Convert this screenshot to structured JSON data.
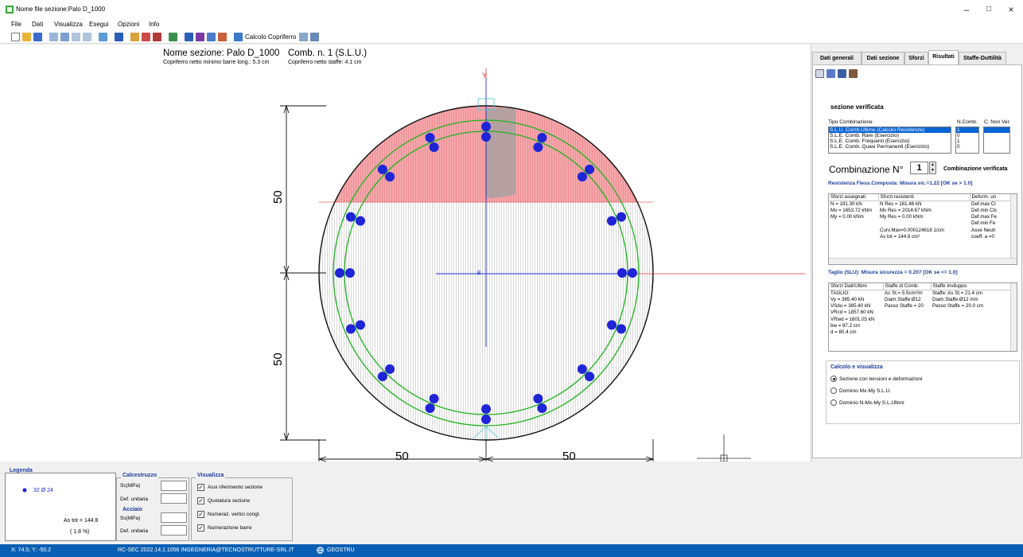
{
  "window": {
    "title": "Nome file sezione:Palo D_1000",
    "minimize": "–",
    "maximize": "□",
    "close": "×"
  },
  "menu": [
    "File",
    "Dati",
    "Visualizza",
    "Esegui",
    "Opzioni",
    "Info"
  ],
  "toolbar": {
    "calcolo_copriferro": "Calcolo Copriferro"
  },
  "drawing": {
    "section_name": "Nome sezione: Palo D_1000",
    "combination": "Comb. n. 1 (S.L.U.)",
    "cover_long": "Copriferro netto minimo barre long.: 5.3 cm",
    "cover_stirrups": "Copriferro netto staffe: 4.1 cm",
    "axis_y": "Y",
    "center_label": "B",
    "dim_top": "50",
    "dim_bottom": "50",
    "dim_left": "50",
    "dim_right": "50",
    "colors": {
      "compressed": "#f4a7ab",
      "rebar": "#1f24d6",
      "stirrup": "#21b321",
      "axis_y": "#1f2bd6",
      "axis_x": "#e03030",
      "neutral": "#999999"
    }
  },
  "tabs": [
    "Dati generali",
    "Dati sezione",
    "Sforzi",
    "Risultati",
    "Staffe-Duttilità"
  ],
  "panel": {
    "status_title": "sezione verificata",
    "tipo_combinazione_label": "Tipo Combinazione",
    "ncomb_label": "N.Comb.",
    "nonver_label": "C. Non Ver.",
    "combinations": [
      "S.L.U. Comb.Ultime (Calcolo Resistenze)",
      "S.L.E. Comb. Rare (Esercizio)",
      "S.L.E. Comb. Frequenti (Esercizio)",
      "S.L.E. Comb. Quasi Permanenti (Esercizio)"
    ],
    "ncomb_values": [
      "1",
      "0",
      "1",
      "0"
    ],
    "combinazione_label": "Combinazione N°",
    "combinazione_value": "1",
    "combinazione_status": "Combinazione verificata",
    "resistenza_title": "Resistenza Fless.Composta: Misura sic.=1.22 [OK se > 1.0]",
    "res_headers": [
      "Sforzi assegnati",
      "Sforzi resistenti",
      "Deform. un"
    ],
    "res_rows": [
      [
        "N = 181.30 kN",
        "N Res = 181.46 kN",
        "Def.max Cl"
      ],
      [
        "Mx = 1653.72 kNm",
        "Mx Res = 2014.67 kNm",
        "Def.min Cls"
      ],
      [
        "My = 0.00 kNm",
        "My Res = 0.00 kNm",
        "Def.max Fe"
      ],
      [
        "",
        "",
        "Def.min Fe"
      ],
      [
        "",
        "Curv.Max=0.000124618 1/cm",
        "Asse Neutr"
      ],
      [
        "",
        "As tot = 144.8 cm²",
        "coeff. a =0"
      ]
    ],
    "taglio_title": "Taglio (SLU): Misura sicurezza = 0.207 [OK se <= 1.0]",
    "tag_headers": [
      "Sforzi Dati/Ultimi",
      "Staffe di Comb.",
      "Staffe Inviluppo"
    ],
    "tag_rows": [
      [
        "TAGLIO:",
        "As St.= 5.5cm²/m",
        "Staffe: As St.= 21.4 cm"
      ],
      [
        "Vy = 385.40 kN",
        "Diam.Staffe:Ø12",
        "Diam.Staffe:Ø12 mm"
      ],
      [
        "VSdu = 385.40 kN",
        "Passo Staffe = 20",
        "Passo Staffe = 20.0 cm"
      ],
      [
        "VRcd = 1857.60 kN",
        "",
        ""
      ],
      [
        "VRwd = 1601.05 kN",
        "",
        ""
      ],
      [
        "bw = 87.2 cm",
        "",
        ""
      ],
      [
        "d = 80.4 cm",
        "",
        ""
      ]
    ],
    "calc_title": "Calcolo e visualizza",
    "radio_options": [
      "Sezione con tensioni e deformazioni",
      "Dominio Mx-My S.L.U.",
      "Dominio N-Mx-My S.L.Ultimi"
    ]
  },
  "legend": {
    "title": "Legenda",
    "bars": "32 Ø 24",
    "as_tot": "As tot = 144.8",
    "percent": "( 1.8 %)"
  },
  "calcestruzzo": {
    "title": "Calcestruzzo",
    "sc": "Sc(MPa)",
    "def": "Def. unitaria"
  },
  "acciaio": {
    "title": "Acciaio",
    "sc": "Ss(MPa)",
    "def": "Def. unitaria"
  },
  "visualizza": {
    "title": "Visualizza",
    "options": [
      "Assi riferimento sezione",
      "Quotatura sezione",
      "Numeraz. vertici congl.",
      "Numerazione barre"
    ]
  },
  "status": {
    "coords": "X: 74.5; Y: -50.2",
    "product": "RC-SEC 2022.14.1.1056 INGEGNERIA@TECNOSTRUTTURE-SRL.IT",
    "brand": "GEOSTRU"
  }
}
